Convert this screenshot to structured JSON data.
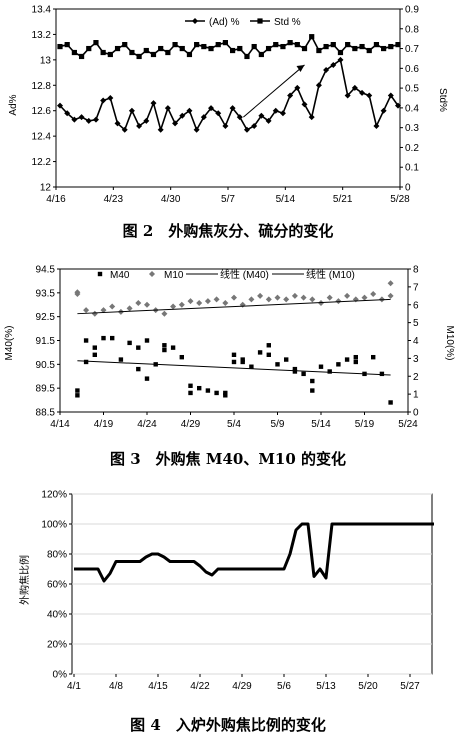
{
  "chart_data": [
    {
      "type": "line",
      "caption": "图 2　外购焦灰分、硫分的变化",
      "ylabel": "Ad%",
      "y2label": "Std%",
      "xticks": [
        "4/16",
        "4/23",
        "4/30",
        "5/7",
        "5/14",
        "5/21",
        "5/28"
      ],
      "xlim": [
        0,
        47
      ],
      "ylim": [
        12,
        13.4
      ],
      "yticks": [
        "12",
        "12.2",
        "12.4",
        "12.6",
        "12.8",
        "13",
        "13.2",
        "13.4"
      ],
      "y2lim": [
        0,
        0.9
      ],
      "y2ticks": [
        "0",
        "0.1",
        "0.2",
        "0.3",
        "0.4",
        "0.5",
        "0.6",
        "0.7",
        "0.8",
        "0.9"
      ],
      "legend": [
        "(Ad) %",
        "Std %"
      ],
      "legend_position": "top-center",
      "annotation": "arrow rising from about 5/9 to 5/19",
      "series": [
        {
          "name": "(Ad) %",
          "axis": "left",
          "marker": "diamond",
          "x": [
            0,
            1,
            2,
            3,
            4,
            5,
            6,
            7,
            8,
            9,
            10,
            11,
            12,
            13,
            14,
            15,
            16,
            17,
            18,
            19,
            20,
            21,
            22,
            23,
            24,
            25,
            26,
            27,
            28,
            29,
            30,
            31,
            32,
            33,
            34,
            35,
            36,
            37,
            38,
            39,
            40,
            41,
            42,
            43,
            44,
            45,
            46,
            47
          ],
          "values": [
            12.64,
            12.58,
            12.53,
            12.55,
            12.52,
            12.53,
            12.68,
            12.7,
            12.5,
            12.45,
            12.6,
            12.48,
            12.52,
            12.66,
            12.45,
            12.62,
            12.5,
            12.56,
            12.6,
            12.45,
            12.55,
            12.62,
            12.58,
            12.48,
            12.62,
            12.55,
            12.45,
            12.48,
            12.56,
            12.52,
            12.6,
            12.58,
            12.72,
            12.78,
            12.65,
            12.55,
            12.8,
            12.92,
            12.96,
            13.0,
            12.72,
            12.78,
            12.74,
            12.72,
            12.48,
            12.6,
            12.72,
            12.64
          ]
        },
        {
          "name": "Std %",
          "axis": "right",
          "marker": "square",
          "x": [
            0,
            1,
            2,
            3,
            4,
            5,
            6,
            7,
            8,
            9,
            10,
            11,
            12,
            13,
            14,
            15,
            16,
            17,
            18,
            19,
            20,
            21,
            22,
            23,
            24,
            25,
            26,
            27,
            28,
            29,
            30,
            31,
            32,
            33,
            34,
            35,
            36,
            37,
            38,
            39,
            40,
            41,
            42,
            43,
            44,
            45,
            46,
            47
          ],
          "values": [
            0.71,
            0.72,
            0.68,
            0.66,
            0.7,
            0.73,
            0.68,
            0.67,
            0.7,
            0.72,
            0.68,
            0.66,
            0.69,
            0.67,
            0.7,
            0.68,
            0.72,
            0.7,
            0.67,
            0.72,
            0.71,
            0.7,
            0.72,
            0.73,
            0.69,
            0.7,
            0.66,
            0.71,
            0.67,
            0.7,
            0.72,
            0.71,
            0.73,
            0.72,
            0.7,
            0.76,
            0.69,
            0.71,
            0.72,
            0.68,
            0.72,
            0.7,
            0.71,
            0.69,
            0.72,
            0.7,
            0.71,
            0.72
          ]
        }
      ]
    },
    {
      "type": "scatter",
      "caption": "图 3　外购焦 M40、M10 的变化",
      "ylabel": "M40(%)",
      "y2label": "M10(%)",
      "xticks": [
        "4/14",
        "4/19",
        "4/24",
        "4/29",
        "5/4",
        "5/9",
        "5/14",
        "5/19",
        "5/24"
      ],
      "xlim": [
        0,
        40
      ],
      "ylim": [
        88.5,
        94.5
      ],
      "yticks": [
        "88.5",
        "89.5",
        "90.5",
        "91.5",
        "92.5",
        "93.5",
        "94.5"
      ],
      "y2lim": [
        0,
        8
      ],
      "y2ticks": [
        "0",
        "1",
        "2",
        "3",
        "4",
        "5",
        "6",
        "7",
        "8"
      ],
      "legend": [
        "M40",
        "M10",
        "线性 (M40)",
        "线性 (M10)"
      ],
      "legend_position": "top",
      "series": [
        {
          "name": "M40",
          "axis": "left",
          "marker": "square",
          "x": [
            2,
            2,
            3,
            3,
            4,
            4,
            5,
            6,
            7,
            8,
            9,
            9,
            10,
            10,
            11,
            12,
            12,
            13,
            14,
            15,
            15,
            16,
            17,
            18,
            19,
            19,
            20,
            20,
            21,
            21,
            22,
            23,
            24,
            24,
            25,
            26,
            27,
            27,
            28,
            29,
            29,
            30,
            31,
            32,
            33,
            34,
            34,
            35,
            36,
            37,
            38
          ],
          "values": [
            89.2,
            89.4,
            90.6,
            91.5,
            91.2,
            90.9,
            91.6,
            91.6,
            90.7,
            91.4,
            90.3,
            91.2,
            89.9,
            91.5,
            90.5,
            91.3,
            91.1,
            91.2,
            90.8,
            89.3,
            89.6,
            89.5,
            89.4,
            89.3,
            89.2,
            89.3,
            90.6,
            90.9,
            90.6,
            90.7,
            90.4,
            91.0,
            90.9,
            91.3,
            90.5,
            90.7,
            90.3,
            90.2,
            90.1,
            89.4,
            89.8,
            90.4,
            90.2,
            90.5,
            90.7,
            90.8,
            90.6,
            90.1,
            90.8,
            90.1,
            88.9
          ]
        },
        {
          "name": "M10",
          "axis": "right",
          "marker": "diamond",
          "x": [
            2,
            2,
            3,
            4,
            5,
            6,
            7,
            8,
            9,
            10,
            11,
            12,
            13,
            14,
            15,
            16,
            17,
            18,
            19,
            20,
            21,
            22,
            23,
            24,
            25,
            26,
            27,
            28,
            29,
            30,
            31,
            32,
            33,
            34,
            35,
            36,
            37,
            38,
            38
          ],
          "values": [
            6.6,
            6.7,
            5.7,
            5.5,
            5.7,
            5.9,
            5.6,
            5.8,
            6.1,
            6.0,
            5.7,
            5.5,
            5.9,
            6.0,
            6.2,
            6.1,
            6.2,
            6.3,
            6.1,
            6.4,
            6.0,
            6.3,
            6.5,
            6.3,
            6.4,
            6.3,
            6.5,
            6.4,
            6.3,
            6.1,
            6.4,
            6.2,
            6.5,
            6.3,
            6.4,
            6.6,
            6.3,
            6.5,
            7.2
          ]
        },
        {
          "name": "线性 (M40)",
          "axis": "left",
          "type": "line",
          "x": [
            2,
            38
          ],
          "values": [
            90.65,
            90.05
          ]
        },
        {
          "name": "线性 (M10)",
          "axis": "right",
          "type": "line",
          "x": [
            2,
            38
          ],
          "values": [
            5.5,
            6.3
          ]
        }
      ]
    },
    {
      "type": "line",
      "caption": "图 4　入炉外购焦比例的变化",
      "ylabel": "外购焦比例",
      "xticks": [
        "4/1",
        "4/8",
        "4/15",
        "4/22",
        "4/29",
        "5/6",
        "5/13",
        "5/20",
        "5/27"
      ],
      "xlim": [
        0,
        60
      ],
      "ylim": [
        0,
        120
      ],
      "yticks": [
        "0%",
        "20%",
        "40%",
        "60%",
        "80%",
        "100%",
        "120%"
      ],
      "series": [
        {
          "name": "外购焦比例",
          "x": [
            0,
            1,
            2,
            3,
            4,
            5,
            6,
            7,
            8,
            9,
            10,
            11,
            12,
            13,
            14,
            15,
            16,
            17,
            18,
            19,
            20,
            21,
            22,
            23,
            24,
            25,
            26,
            27,
            28,
            29,
            30,
            31,
            32,
            33,
            34,
            35,
            36,
            37,
            38,
            39,
            40,
            41,
            42,
            43,
            44,
            45,
            46,
            47,
            48,
            49,
            50,
            51,
            52,
            53,
            54,
            55,
            56,
            57,
            58,
            59,
            60
          ],
          "values": [
            70,
            70,
            70,
            70,
            70,
            62,
            67,
            75,
            75,
            75,
            75,
            75,
            78,
            80,
            80,
            78,
            75,
            75,
            75,
            75,
            75,
            72,
            68,
            66,
            70,
            70,
            70,
            70,
            70,
            70,
            70,
            70,
            70,
            70,
            70,
            70,
            80,
            96,
            100,
            100,
            65,
            70,
            64,
            100,
            100,
            100,
            100,
            100,
            100,
            100,
            100,
            100,
            100,
            100,
            100,
            100,
            100,
            100,
            100,
            100,
            100
          ]
        }
      ]
    }
  ]
}
